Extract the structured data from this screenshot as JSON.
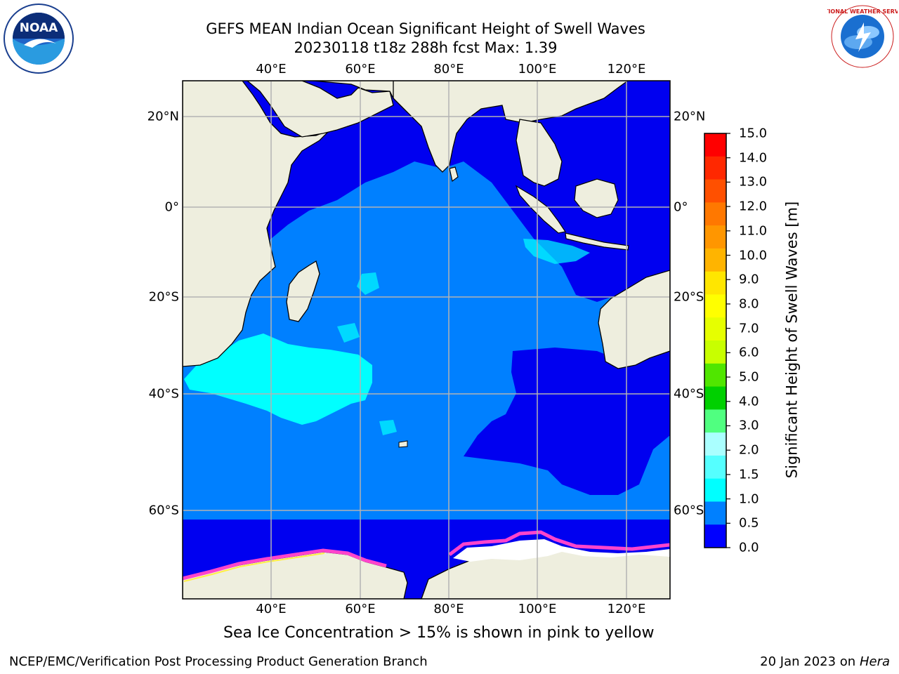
{
  "title": {
    "line1": "GEFS MEAN Indian Ocean Significant Height of Swell Waves",
    "line2": "20230118 t18z 288h fcst   Max: 1.39"
  },
  "map": {
    "lon_ticks_top": [
      "40°E",
      "60°E",
      "80°E",
      "100°E",
      "120°E"
    ],
    "lon_ticks_bottom": [
      "40°E",
      "60°E",
      "80°E",
      "100°E",
      "120°E"
    ],
    "lat_ticks_left": [
      "20°N",
      "0°",
      "20°S",
      "40°S",
      "60°S"
    ],
    "lat_ticks_right": [
      "20°N",
      "0°",
      "20°S",
      "40°S",
      "60°S"
    ],
    "colors": {
      "land": "#eeeede",
      "gridline": "#b3b3b3",
      "band_0_0_5": "#0000f0",
      "band_0_5_1_0": "#0080ff",
      "band_1_0_1_5": "#00ffff",
      "band_1_5_2_0": "#66ffee",
      "sea_ice_pink": "#ff44cc",
      "sea_ice_yellow": "#ffee44"
    }
  },
  "colorbar": {
    "title": "Significant Height of Swell Waves [m]",
    "labels": [
      "15.0",
      "14.0",
      "13.0",
      "12.0",
      "11.0",
      "10.0",
      "9.0",
      "8.0",
      "7.0",
      "6.0",
      "5.0",
      "4.0",
      "3.0",
      "2.0",
      "1.5",
      "1.0",
      "0.5",
      "0.0"
    ],
    "colors": [
      "#ff0000",
      "#ff2800",
      "#ff5000",
      "#ff7800",
      "#ff9600",
      "#ffb400",
      "#ffe600",
      "#ffff00",
      "#e6ff00",
      "#c8ff00",
      "#50e600",
      "#00d000",
      "#50ff80",
      "#aaffff",
      "#55ffff",
      "#00ffff",
      "#0080ff",
      "#0000ff"
    ]
  },
  "notes": {
    "sea_ice": "Sea Ice Concentration > 15% is shown in pink to yellow"
  },
  "footer": {
    "left": "NCEP/EMC/Verification Post Processing Product Generation Branch",
    "date": "20 Jan 2023 on ",
    "machine": "Hera"
  },
  "logos": {
    "left": "NOAA",
    "right": "NATIONAL WEATHER SERVICE"
  }
}
